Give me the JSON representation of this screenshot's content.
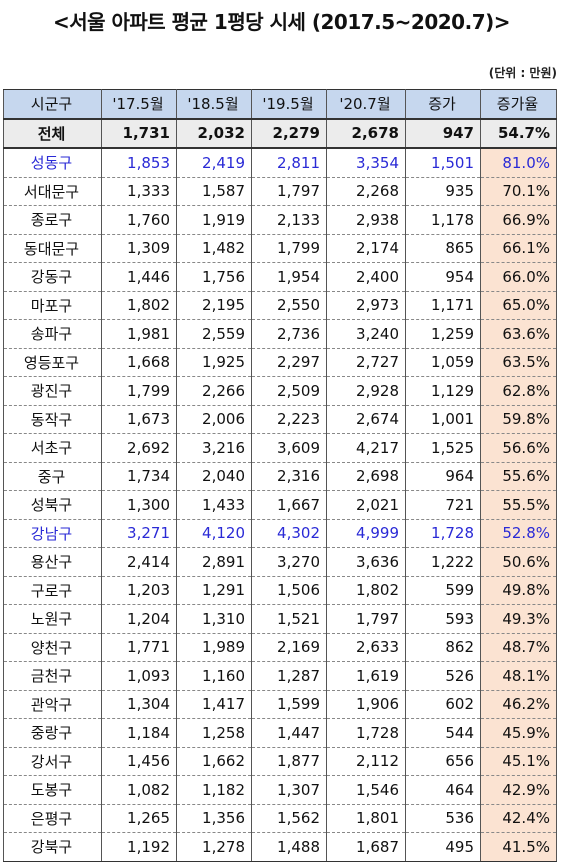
{
  "title": "<서울 아파트 평균 1평당 시세 (2017.5~2020.7)>",
  "unit": "(단위 : 만원)",
  "headers": [
    "시군구",
    "'17.5월",
    "'18.5월",
    "'19.5월",
    "'20.7월",
    "증가",
    "증가율"
  ],
  "total": [
    "전체",
    "1,731",
    "2,032",
    "2,279",
    "2,678",
    "947",
    "54.7%"
  ],
  "rows": [
    [
      "성동구",
      "1,853",
      "2,419",
      "2,811",
      "3,354",
      "1,501",
      "81.0%"
    ],
    [
      "서대문구",
      "1,333",
      "1,587",
      "1,797",
      "2,268",
      "935",
      "70.1%"
    ],
    [
      "종로구",
      "1,760",
      "1,919",
      "2,133",
      "2,938",
      "1,178",
      "66.9%"
    ],
    [
      "동대문구",
      "1,309",
      "1,482",
      "1,799",
      "2,174",
      "865",
      "66.1%"
    ],
    [
      "강동구",
      "1,446",
      "1,756",
      "1,954",
      "2,400",
      "954",
      "66.0%"
    ],
    [
      "마포구",
      "1,802",
      "2,195",
      "2,550",
      "2,973",
      "1,171",
      "65.0%"
    ],
    [
      "송파구",
      "1,981",
      "2,559",
      "2,736",
      "3,240",
      "1,259",
      "63.6%"
    ],
    [
      "영등포구",
      "1,668",
      "1,925",
      "2,297",
      "2,727",
      "1,059",
      "63.5%"
    ],
    [
      "광진구",
      "1,799",
      "2,266",
      "2,509",
      "2,928",
      "1,129",
      "62.8%"
    ],
    [
      "동작구",
      "1,673",
      "2,006",
      "2,223",
      "2,674",
      "1,001",
      "59.8%"
    ],
    [
      "서초구",
      "2,692",
      "3,216",
      "3,609",
      "4,217",
      "1,525",
      "56.6%"
    ],
    [
      "중구",
      "1,734",
      "2,040",
      "2,316",
      "2,698",
      "964",
      "55.6%"
    ],
    [
      "성북구",
      "1,300",
      "1,433",
      "1,667",
      "2,021",
      "721",
      "55.5%"
    ],
    [
      "강남구",
      "3,271",
      "4,120",
      "4,302",
      "4,999",
      "1,728",
      "52.8%"
    ],
    [
      "용산구",
      "2,414",
      "2,891",
      "3,270",
      "3,636",
      "1,222",
      "50.6%"
    ],
    [
      "구로구",
      "1,203",
      "1,291",
      "1,506",
      "1,802",
      "599",
      "49.8%"
    ],
    [
      "노원구",
      "1,204",
      "1,310",
      "1,521",
      "1,797",
      "593",
      "49.3%"
    ],
    [
      "양천구",
      "1,771",
      "1,989",
      "2,169",
      "2,633",
      "862",
      "48.7%"
    ],
    [
      "금천구",
      "1,093",
      "1,160",
      "1,287",
      "1,619",
      "526",
      "48.1%"
    ],
    [
      "관악구",
      "1,304",
      "1,417",
      "1,599",
      "1,906",
      "602",
      "46.2%"
    ],
    [
      "중랑구",
      "1,184",
      "1,258",
      "1,447",
      "1,728",
      "544",
      "45.9%"
    ],
    [
      "강서구",
      "1,456",
      "1,662",
      "1,877",
      "2,112",
      "656",
      "45.1%"
    ],
    [
      "도봉구",
      "1,082",
      "1,182",
      "1,307",
      "1,546",
      "464",
      "42.9%"
    ],
    [
      "은평구",
      "1,265",
      "1,356",
      "1,562",
      "1,801",
      "536",
      "42.4%"
    ],
    [
      "강북구",
      "1,192",
      "1,278",
      "1,488",
      "1,687",
      "495",
      "41.5%"
    ]
  ],
  "highlight_color": "#2a2ad6",
  "highlighted_rows": [
    "성동구",
    "강남구"
  ]
}
